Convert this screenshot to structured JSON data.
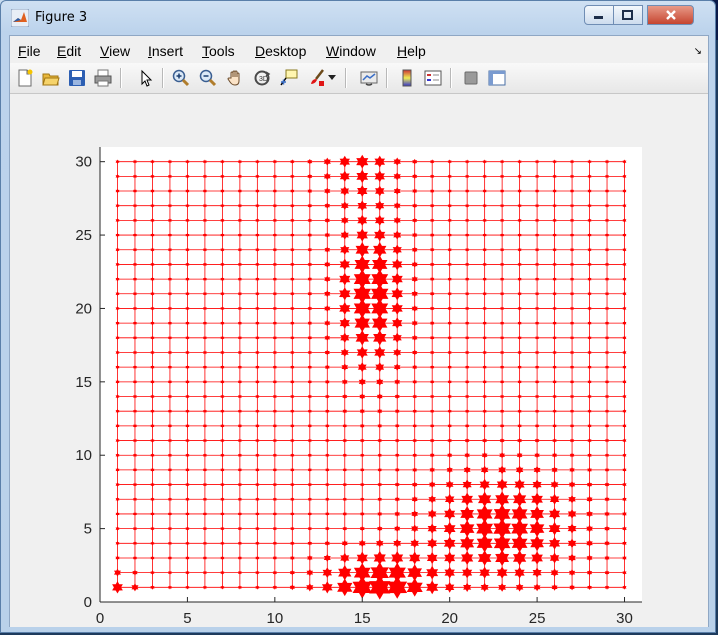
{
  "window": {
    "title": "Figure 3"
  },
  "menu": [
    "File",
    "Edit",
    "View",
    "Insert",
    "Tools",
    "Desktop",
    "Window",
    "Help"
  ],
  "menu_mnemonic_index": [
    0,
    0,
    0,
    0,
    0,
    0,
    0,
    0
  ],
  "toolbar": [
    "new-figure-icon",
    "open-file-icon",
    "save-icon",
    "print-icon",
    "edit-plot-icon",
    "zoom-in-icon",
    "zoom-out-icon",
    "pan-icon",
    "rotate-3d-icon",
    "data-cursor-icon",
    "brush-icon",
    "link-plot-icon",
    "colorbar-icon",
    "legend-icon",
    "hide-plot-tools-icon",
    "show-plot-tools-icon"
  ],
  "colors": {
    "marker": "#ff0000",
    "axes_bg": "#ffffff",
    "figure_bg": "#f0f0f0"
  },
  "chart_data": {
    "type": "scatter",
    "marker": "hexagram",
    "connected_grid": true,
    "xlim": [
      0,
      31
    ],
    "ylim": [
      0,
      31
    ],
    "xticks": [
      0,
      5,
      10,
      15,
      20,
      25,
      30
    ],
    "yticks": [
      0,
      5,
      10,
      15,
      20,
      25,
      30
    ],
    "grid_x": [
      1,
      30
    ],
    "grid_y": [
      1,
      30
    ],
    "size_peaks": [
      {
        "x": 16,
        "y": 1,
        "amp": 1.0,
        "sx": 2.2,
        "sy": 1.6
      },
      {
        "x": 15.5,
        "y": 21,
        "amp": 0.85,
        "sx": 1.3,
        "sy": 3.5
      },
      {
        "x": 23,
        "y": 5,
        "amp": 0.8,
        "sx": 2.8,
        "sy": 2.5
      },
      {
        "x": 15,
        "y": 30,
        "amp": 0.45,
        "sx": 1.5,
        "sy": 2
      },
      {
        "x": 1,
        "y": 1,
        "amp": 0.4,
        "sx": 0.8,
        "sy": 0.8
      }
    ],
    "base_size": 0.08
  }
}
